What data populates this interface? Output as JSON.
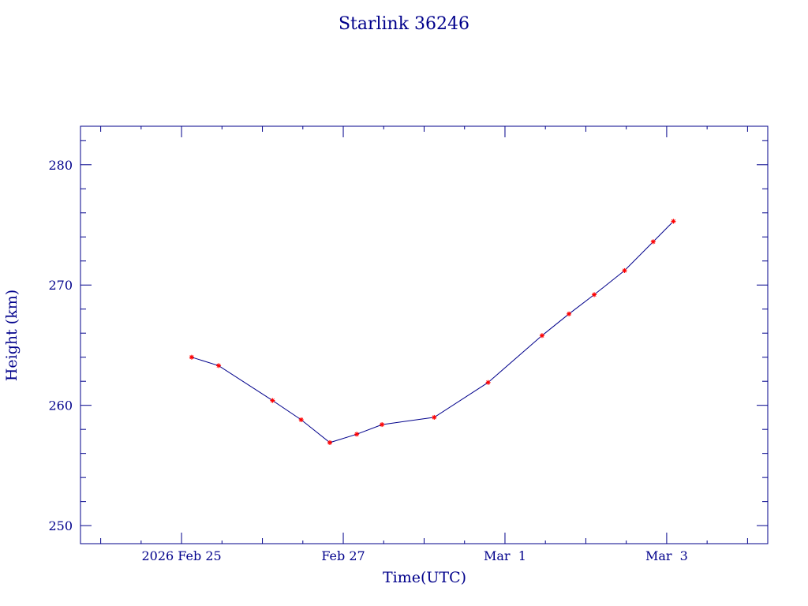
{
  "chart_data": {
    "type": "line",
    "title": "Starlink 36246",
    "xlabel": "Time(UTC)",
    "ylabel": "Height (km)",
    "x_tick_labels": [
      "2026 Feb 25",
      "Feb 27",
      "Mar  1",
      "Mar  3"
    ],
    "x_tick_values": [
      "2026-02-25",
      "2026-02-27",
      "2026-03-01",
      "2026-03-03"
    ],
    "y_tick_labels": [
      "250",
      "260",
      "270",
      "280"
    ],
    "xlim": [
      "2026-02-23T18:00",
      "2026-03-04T06:00"
    ],
    "ylim": [
      248.5,
      283.2
    ],
    "grid": false,
    "colors": {
      "axes": "#00008b",
      "line": "#00008b",
      "marker": "#ff0000"
    },
    "series": [
      {
        "x": [
          "2026-02-25T03:00",
          "2026-02-25T11:00",
          "2026-02-26T03:00",
          "2026-02-26T11:30",
          "2026-02-26T20:00",
          "2026-02-27T04:00",
          "2026-02-27T11:30",
          "2026-02-28T03:00",
          "2026-02-28T19:00",
          "2026-03-01T11:00",
          "2026-03-01T19:00",
          "2026-03-02T02:30",
          "2026-03-02T11:30",
          "2026-03-02T20:00",
          "2026-03-03T02:00"
        ],
        "values": [
          264.0,
          263.3,
          260.4,
          258.8,
          256.9,
          257.6,
          258.4,
          259.0,
          261.9,
          265.8,
          267.6,
          269.2,
          271.2,
          273.6,
          275.3
        ]
      }
    ]
  }
}
